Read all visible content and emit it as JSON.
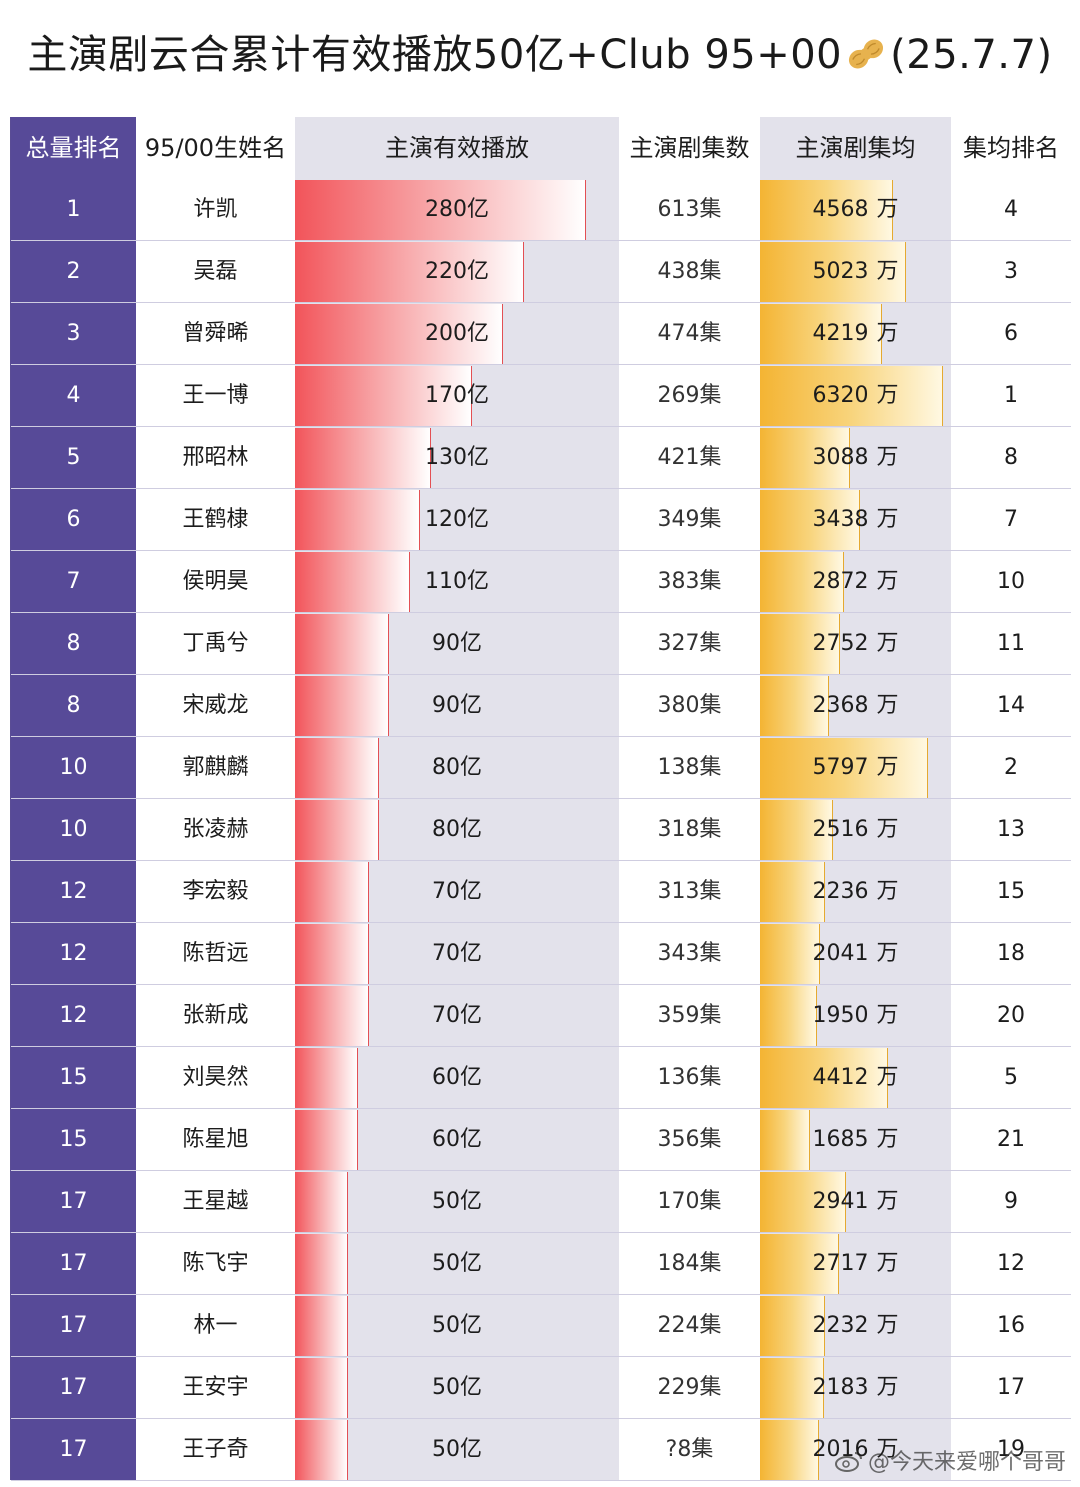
{
  "title": {
    "before": "主演剧云合累计有效播放50亿+Club 95+00",
    "emoji": "peanut",
    "after": "(25.7.7)"
  },
  "watermark": "@今天来爱哪个哥哥",
  "colors": {
    "rank_bg": "#574a98",
    "play_bar": "#f2545a",
    "avg_bar": "#f4b433",
    "shade_col": "#e3e2eb"
  },
  "chart_data": {
    "type": "table",
    "columns": [
      "总量排名",
      "95/00生姓名",
      "主演有效播放",
      "主演剧集数",
      "主演剧集均",
      "集均排名"
    ],
    "play_unit": "亿",
    "episodes_unit": "集",
    "avg_unit": "万",
    "play_bar_max": 280,
    "avg_bar_max": 6320,
    "rows": [
      {
        "rank": "1",
        "name": "许凯",
        "play": 280,
        "episodes": "613",
        "avg": 4568,
        "avg_rank": "4"
      },
      {
        "rank": "2",
        "name": "吴磊",
        "play": 220,
        "episodes": "438",
        "avg": 5023,
        "avg_rank": "3"
      },
      {
        "rank": "3",
        "name": "曾舜晞",
        "play": 200,
        "episodes": "474",
        "avg": 4219,
        "avg_rank": "6"
      },
      {
        "rank": "4",
        "name": "王一博",
        "play": 170,
        "episodes": "269",
        "avg": 6320,
        "avg_rank": "1"
      },
      {
        "rank": "5",
        "name": "邢昭林",
        "play": 130,
        "episodes": "421",
        "avg": 3088,
        "avg_rank": "8"
      },
      {
        "rank": "6",
        "name": "王鹤棣",
        "play": 120,
        "episodes": "349",
        "avg": 3438,
        "avg_rank": "7"
      },
      {
        "rank": "7",
        "name": "侯明昊",
        "play": 110,
        "episodes": "383",
        "avg": 2872,
        "avg_rank": "10"
      },
      {
        "rank": "8",
        "name": "丁禹兮",
        "play": 90,
        "episodes": "327",
        "avg": 2752,
        "avg_rank": "11"
      },
      {
        "rank": "8",
        "name": "宋威龙",
        "play": 90,
        "episodes": "380",
        "avg": 2368,
        "avg_rank": "14"
      },
      {
        "rank": "10",
        "name": "郭麒麟",
        "play": 80,
        "episodes": "138",
        "avg": 5797,
        "avg_rank": "2"
      },
      {
        "rank": "10",
        "name": "张凌赫",
        "play": 80,
        "episodes": "318",
        "avg": 2516,
        "avg_rank": "13"
      },
      {
        "rank": "12",
        "name": "李宏毅",
        "play": 70,
        "episodes": "313",
        "avg": 2236,
        "avg_rank": "15"
      },
      {
        "rank": "12",
        "name": "陈哲远",
        "play": 70,
        "episodes": "343",
        "avg": 2041,
        "avg_rank": "18"
      },
      {
        "rank": "12",
        "name": "张新成",
        "play": 70,
        "episodes": "359",
        "avg": 1950,
        "avg_rank": "20"
      },
      {
        "rank": "15",
        "name": "刘昊然",
        "play": 60,
        "episodes": "136",
        "avg": 4412,
        "avg_rank": "5"
      },
      {
        "rank": "15",
        "name": "陈星旭",
        "play": 60,
        "episodes": "356",
        "avg": 1685,
        "avg_rank": "21"
      },
      {
        "rank": "17",
        "name": "王星越",
        "play": 50,
        "episodes": "170",
        "avg": 2941,
        "avg_rank": "9"
      },
      {
        "rank": "17",
        "name": "陈飞宇",
        "play": 50,
        "episodes": "184",
        "avg": 2717,
        "avg_rank": "12"
      },
      {
        "rank": "17",
        "name": "林一",
        "play": 50,
        "episodes": "224",
        "avg": 2232,
        "avg_rank": "16"
      },
      {
        "rank": "17",
        "name": "王安宇",
        "play": 50,
        "episodes": "229",
        "avg": 2183,
        "avg_rank": "17"
      },
      {
        "rank": "17",
        "name": "王子奇",
        "play": 50,
        "episodes": "?8",
        "avg": 2016,
        "avg_rank": "19"
      }
    ]
  }
}
